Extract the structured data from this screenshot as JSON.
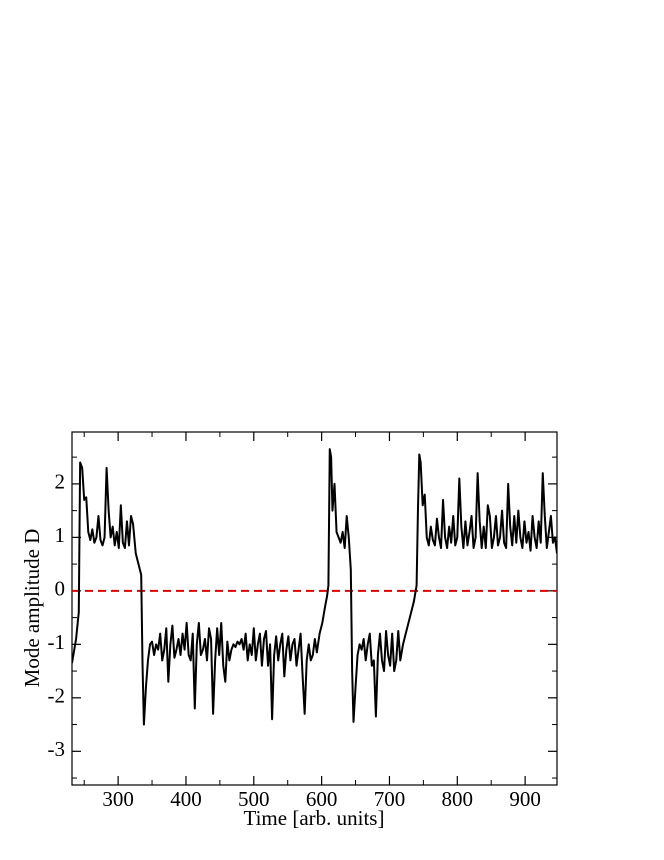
{
  "chart_data": {
    "type": "line",
    "x_label": "Time [arb. units]",
    "y_label": "Mode amplitude D",
    "color": "#000000",
    "x": [
      232,
      238,
      242,
      244,
      247,
      250,
      253,
      256,
      259,
      262,
      265,
      268,
      271,
      274,
      277,
      280,
      283,
      286,
      289,
      292,
      295,
      298,
      301,
      304,
      307,
      310,
      313,
      316,
      319,
      322,
      326,
      330,
      334,
      336,
      338,
      341,
      344,
      347,
      350,
      353,
      356,
      359,
      362,
      365,
      368,
      371,
      374,
      377,
      380,
      383,
      386,
      389,
      392,
      395,
      398,
      401,
      404,
      407,
      410,
      413,
      416,
      419,
      422,
      425,
      428,
      431,
      434,
      437,
      440,
      443,
      446,
      449,
      452,
      455,
      458,
      461,
      464,
      467,
      470,
      473,
      476,
      479,
      482,
      485,
      488,
      491,
      494,
      497,
      500,
      503,
      506,
      509,
      512,
      515,
      518,
      521,
      524,
      527,
      530,
      533,
      536,
      539,
      542,
      545,
      548,
      551,
      554,
      557,
      560,
      563,
      566,
      569,
      572,
      575,
      578,
      581,
      584,
      587,
      590,
      593,
      597,
      601,
      605,
      608,
      610,
      612,
      614,
      616,
      619,
      622,
      625,
      628,
      631,
      634,
      637,
      640,
      643,
      645,
      647,
      650,
      653,
      656,
      659,
      662,
      665,
      668,
      671,
      674,
      677,
      680,
      683,
      686,
      689,
      692,
      695,
      698,
      701,
      704,
      707,
      710,
      713,
      716,
      720,
      724,
      728,
      732,
      736,
      740,
      742,
      744,
      746,
      749,
      752,
      755,
      758,
      761,
      764,
      767,
      770,
      773,
      776,
      779,
      782,
      785,
      788,
      791,
      794,
      797,
      800,
      803,
      806,
      809,
      812,
      815,
      818,
      821,
      824,
      827,
      830,
      833,
      836,
      839,
      842,
      845,
      848,
      851,
      854,
      857,
      860,
      863,
      866,
      869,
      872,
      875,
      878,
      881,
      884,
      887,
      890,
      893,
      896,
      899,
      902,
      905,
      908,
      911,
      914,
      917,
      920,
      923,
      926,
      929,
      932,
      935,
      938,
      941,
      944,
      947
    ],
    "values": [
      -1.35,
      -0.9,
      -0.4,
      2.4,
      2.3,
      1.7,
      1.75,
      1.1,
      0.95,
      1.15,
      0.9,
      1.0,
      1.4,
      0.95,
      0.85,
      1.0,
      2.3,
      1.5,
      1.0,
      1.2,
      0.85,
      1.1,
      0.8,
      1.6,
      0.9,
      0.8,
      1.3,
      0.85,
      1.4,
      1.25,
      0.7,
      0.5,
      0.3,
      -1.4,
      -2.5,
      -1.8,
      -1.3,
      -1.0,
      -0.95,
      -1.2,
      -1.0,
      -1.1,
      -0.8,
      -1.3,
      -1.1,
      -0.7,
      -1.7,
      -1.0,
      -0.65,
      -1.25,
      -1.1,
      -0.9,
      -1.2,
      -0.8,
      -1.1,
      -0.6,
      -1.2,
      -1.3,
      -0.8,
      -2.2,
      -1.0,
      -0.6,
      -1.2,
      -1.1,
      -0.9,
      -1.3,
      -0.7,
      -0.9,
      -2.3,
      -1.3,
      -0.7,
      -1.2,
      -0.6,
      -1.4,
      -1.7,
      -0.95,
      -1.3,
      -1.1,
      -1.0,
      -1.05,
      -0.95,
      -1.0,
      -0.9,
      -1.1,
      -0.8,
      -1.3,
      -1.0,
      -1.2,
      -0.7,
      -1.3,
      -1.0,
      -0.8,
      -1.4,
      -0.9,
      -0.75,
      -1.4,
      -1.0,
      -2.4,
      -1.2,
      -0.85,
      -1.3,
      -1.0,
      -0.8,
      -1.6,
      -1.1,
      -0.85,
      -1.3,
      -1.0,
      -0.9,
      -1.4,
      -1.1,
      -0.8,
      -1.6,
      -2.3,
      -1.3,
      -1.0,
      -1.3,
      -1.2,
      -0.9,
      -1.15,
      -0.8,
      -0.6,
      -0.3,
      -0.1,
      0.1,
      2.65,
      2.5,
      1.5,
      2.0,
      1.1,
      1.0,
      0.9,
      1.1,
      0.8,
      1.4,
      1.0,
      0.4,
      -1.5,
      -2.45,
      -1.8,
      -1.2,
      -1.0,
      -1.1,
      -0.9,
      -1.3,
      -1.0,
      -0.8,
      -1.4,
      -1.3,
      -2.35,
      -1.2,
      -0.8,
      -1.3,
      -1.5,
      -0.75,
      -1.2,
      -1.4,
      -0.8,
      -1.5,
      -1.3,
      -0.75,
      -1.3,
      -1.0,
      -0.8,
      -0.6,
      -0.4,
      -0.2,
      0.1,
      1.5,
      2.55,
      2.4,
      1.6,
      1.8,
      1.0,
      0.85,
      1.2,
      0.95,
      0.85,
      1.35,
      1.0,
      0.8,
      1.7,
      1.0,
      0.8,
      1.2,
      0.9,
      1.4,
      0.85,
      1.0,
      2.1,
      1.2,
      0.8,
      1.3,
      0.85,
      1.1,
      1.4,
      0.8,
      1.0,
      2.2,
      1.3,
      0.8,
      1.2,
      0.8,
      1.6,
      1.4,
      0.8,
      1.0,
      1.4,
      0.85,
      1.0,
      1.5,
      0.9,
      0.8,
      2.0,
      1.2,
      0.85,
      1.4,
      0.9,
      1.5,
      1.0,
      0.8,
      1.3,
      0.9,
      1.1,
      0.75,
      1.4,
      1.0,
      0.8,
      1.3,
      0.9,
      2.2,
      1.4,
      0.8,
      1.1,
      1.4,
      0.9,
      1.0,
      0.7
    ],
    "xlim": [
      232,
      947
    ],
    "ylim": [
      -3.63,
      2.97
    ],
    "xticks": [
      300,
      400,
      500,
      600,
      700,
      800,
      900
    ],
    "yticks": [
      -3,
      -2,
      -1,
      0,
      1,
      2
    ],
    "xminorticks": [
      250,
      350,
      450,
      550,
      650,
      750,
      850
    ],
    "yminorticks": [
      -3.5,
      -2.5,
      -1.5,
      -0.5,
      0.5,
      1.5,
      2.5
    ],
    "hline": {
      "value": 0,
      "color": "#e00000",
      "dashed": true
    }
  }
}
